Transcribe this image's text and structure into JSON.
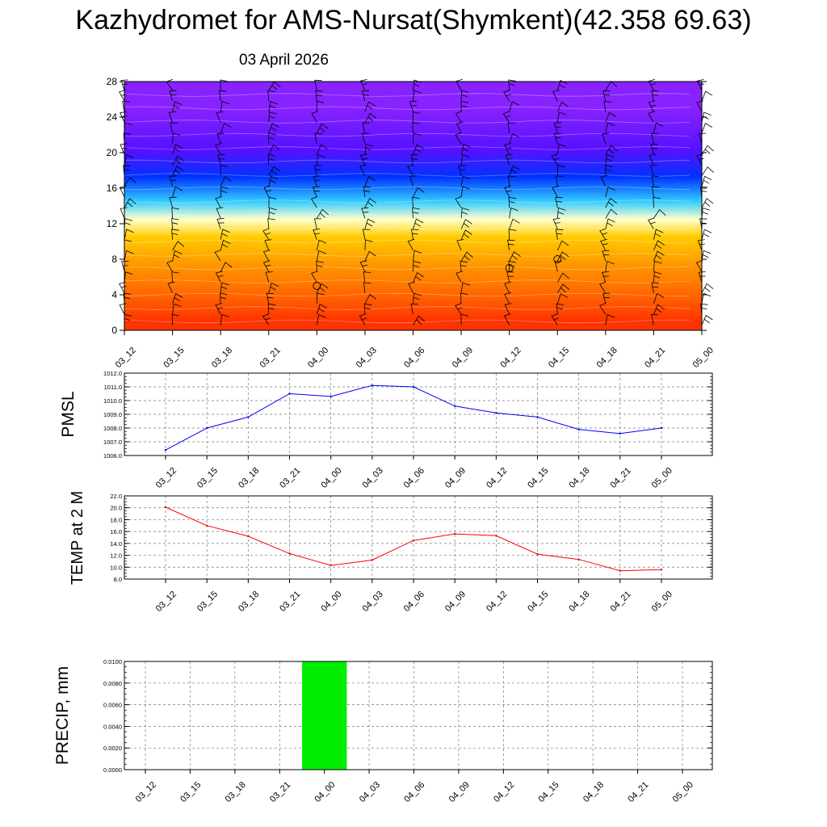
{
  "header": {
    "title": "Kazhydromet for AMS-Nursat(Shymkent)(42.358 69.63)",
    "subtitle": "03 April 2026"
  },
  "colors": {
    "pressure_line": "#0000ff",
    "temperature_line": "#ff0000",
    "precip_bar": "#00ee00",
    "grid": "#777777",
    "wind_barb": "#000000"
  },
  "chart_data": [
    {
      "type": "heatmap",
      "title": "",
      "xlabel": "",
      "ylabel": "",
      "x": [
        "03_12",
        "03_15",
        "03_18",
        "03_21",
        "04_00",
        "04_03",
        "04_06",
        "04_09",
        "04_12",
        "04_15",
        "04_18",
        "04_21",
        "05_00"
      ],
      "yticks": [
        0,
        4,
        8,
        12,
        16,
        20,
        24,
        28
      ],
      "ylim": [
        0,
        28
      ],
      "color_bands": [
        {
          "level_low": 0,
          "level_high": 2,
          "color": "#ff3300"
        },
        {
          "level_low": 2,
          "level_high": 6,
          "color": "#ff6600"
        },
        {
          "level_low": 6,
          "level_high": 9,
          "color": "#ff9900"
        },
        {
          "level_low": 9,
          "level_high": 12,
          "color": "#ffcc00"
        },
        {
          "level_low": 12,
          "level_high": 13,
          "color": "#ffffcc"
        },
        {
          "level_low": 13,
          "level_high": 16,
          "color": "#33ccff"
        },
        {
          "level_low": 16,
          "level_high": 18.5,
          "color": "#0033ff"
        },
        {
          "level_low": 18.5,
          "level_high": 22,
          "color": "#5511ff"
        },
        {
          "level_low": 22,
          "level_high": 28,
          "color": "#8822ff"
        }
      ],
      "wind_barbs": true,
      "calm_markers": [
        {
          "x": "04_00",
          "level": 5
        },
        {
          "x": "04_12",
          "level": 7
        },
        {
          "x": "04_15",
          "level": 8
        }
      ]
    },
    {
      "type": "line",
      "title": "",
      "xlabel": "",
      "ylabel": "PMSL",
      "x": [
        "03_12",
        "03_15",
        "03_18",
        "03_21",
        "04_00",
        "04_03",
        "04_06",
        "04_09",
        "04_12",
        "04_15",
        "04_18",
        "04_21",
        "05_00"
      ],
      "series": [
        {
          "values": [
            1006.4,
            1008.0,
            1008.8,
            1010.5,
            1010.3,
            1011.1,
            1011.0,
            1009.6,
            1009.1,
            1008.8,
            1007.9,
            1007.6,
            1008.0
          ]
        }
      ],
      "ylim": [
        1006.0,
        1012.0
      ],
      "yticks": [
        "1006.0",
        "1007.0",
        "1008.0",
        "1009.0",
        "1010.0",
        "1011.0",
        "1012.0"
      ],
      "grid": true
    },
    {
      "type": "line",
      "title": "",
      "xlabel": "",
      "ylabel": "TEMP at 2 M",
      "x": [
        "03_12",
        "03_15",
        "03_18",
        "03_21",
        "04_00",
        "04_03",
        "04_06",
        "04_09",
        "04_12",
        "04_15",
        "04_18",
        "04_21",
        "05_00"
      ],
      "series": [
        {
          "values": [
            20.1,
            17.0,
            15.2,
            12.3,
            10.3,
            11.2,
            14.5,
            15.6,
            15.3,
            12.2,
            11.3,
            9.4,
            9.6
          ]
        }
      ],
      "ylim": [
        8.0,
        22.0
      ],
      "yticks": [
        "8.0",
        "10.0",
        "12.0",
        "14.0",
        "16.0",
        "18.0",
        "20.0",
        "22.0"
      ],
      "grid": true
    },
    {
      "type": "bar",
      "title": "",
      "xlabel": "",
      "ylabel": "PRECIP, mm",
      "categories": [
        "03_12",
        "03_15",
        "03_18",
        "03_21",
        "04_00",
        "04_03",
        "04_06",
        "04_09",
        "04_12",
        "04_15",
        "04_18",
        "04_21",
        "05_00"
      ],
      "values": [
        0,
        0,
        0,
        0,
        0.01,
        0,
        0,
        0,
        0,
        0,
        0,
        0,
        0
      ],
      "ylim": [
        0,
        0.01
      ],
      "yticks": [
        "0.0000",
        "0.0020",
        "0.0040",
        "0.0060",
        "0.0080",
        "0.0100"
      ],
      "grid": true
    }
  ]
}
